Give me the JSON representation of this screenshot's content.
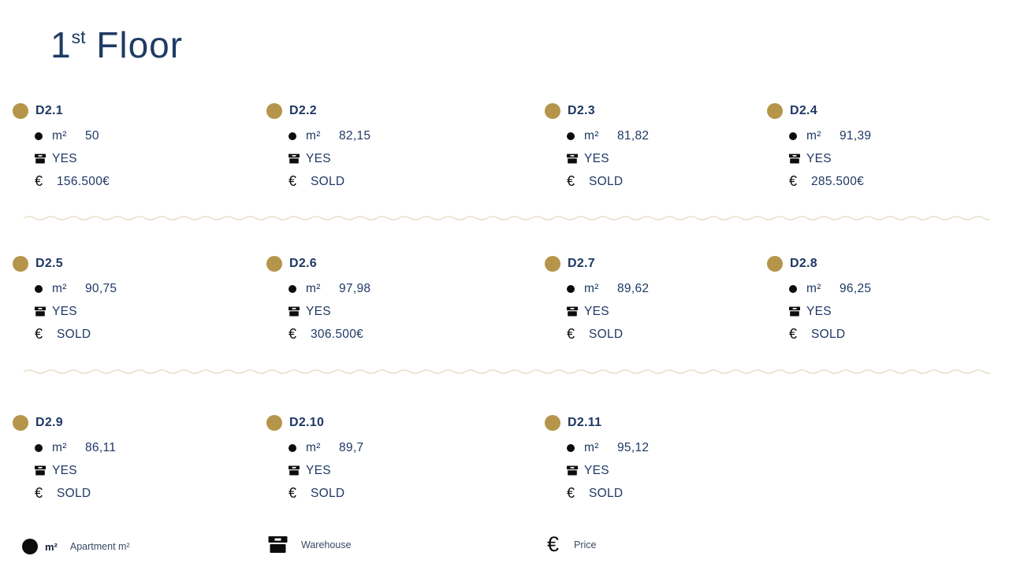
{
  "title": {
    "number": "1",
    "ordinal": "st",
    "text": " Floor"
  },
  "labels": {
    "sqm": "m²",
    "euro": "€"
  },
  "units": [
    {
      "id": "D2.1",
      "sqm": "50",
      "warehouse": "YES",
      "price": "156.500€"
    },
    {
      "id": "D2.2",
      "sqm": "82,15",
      "warehouse": "YES",
      "price": "SOLD"
    },
    {
      "id": "D2.3",
      "sqm": "81,82",
      "warehouse": "YES",
      "price": "SOLD"
    },
    {
      "id": "D2.4",
      "sqm": "91,39",
      "warehouse": "YES",
      "price": "285.500€"
    },
    {
      "id": "D2.5",
      "sqm": "90,75",
      "warehouse": "YES",
      "price": "SOLD"
    },
    {
      "id": "D2.6",
      "sqm": "97,98",
      "warehouse": "YES",
      "price": "306.500€"
    },
    {
      "id": "D2.7",
      "sqm": "89,62",
      "warehouse": "YES",
      "price": "SOLD"
    },
    {
      "id": "D2.8",
      "sqm": "96,25",
      "warehouse": "YES",
      "price": "SOLD"
    },
    {
      "id": "D2.9",
      "sqm": "86,11",
      "warehouse": "YES",
      "price": "SOLD"
    },
    {
      "id": "D2.10",
      "sqm": "89,7",
      "warehouse": "YES",
      "price": "SOLD"
    },
    {
      "id": "D2.11",
      "sqm": "95,12",
      "warehouse": "YES",
      "price": "SOLD"
    }
  ],
  "legend": {
    "apartment": {
      "symbol": "m²",
      "label": "Apartment m²"
    },
    "warehouse": {
      "label": "Warehouse"
    },
    "price": {
      "symbol": "€",
      "label": "Price"
    }
  },
  "colors": {
    "navy": "#1f3864",
    "gold": "#b5954a",
    "wave": "#e7e0ca",
    "icon_black": "#0c0c0c"
  }
}
